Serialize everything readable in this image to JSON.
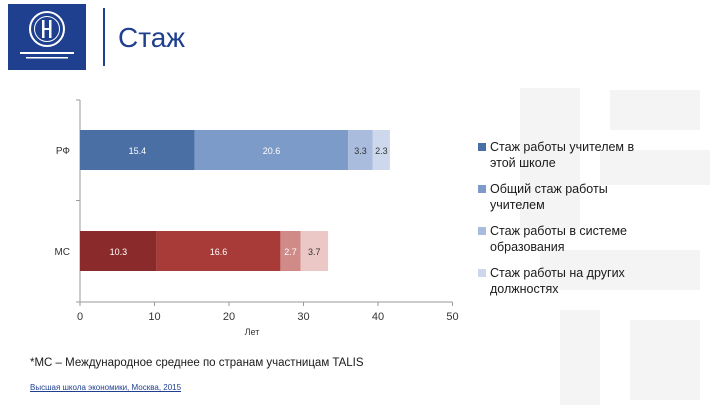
{
  "header": {
    "title": "Стаж",
    "logo_icon": "hse-logo-icon"
  },
  "chart_data": {
    "type": "bar",
    "orientation": "horizontal",
    "stacked": true,
    "categories": [
      "РФ",
      "МС"
    ],
    "series": [
      {
        "name": "Стаж работы учителем в этой школе",
        "values": [
          15.4,
          10.3
        ],
        "labels": [
          "15.4",
          "10.3"
        ]
      },
      {
        "name": "Общий стаж работы учителем",
        "values": [
          20.6,
          16.6
        ],
        "labels": [
          "20.6",
          "16.6"
        ]
      },
      {
        "name": "Стаж работы в системе образования",
        "values": [
          3.3,
          2.7
        ],
        "labels": [
          "3.3",
          "2.7"
        ]
      },
      {
        "name": "Стаж работы на других должностях",
        "values": [
          2.3,
          3.7
        ],
        "labels": [
          "2.3",
          "3.7"
        ]
      }
    ],
    "category_colors": {
      "РФ": [
        "#4a6fa5",
        "#7d9bc9",
        "#a9bcdd",
        "#cdd8ec"
      ],
      "МС": [
        "#8b2a2a",
        "#a83a38",
        "#d08a88",
        "#ebc8c6"
      ]
    },
    "legend_colors": [
      "#4a6fa5",
      "#7d9bc9",
      "#a9bcdd",
      "#cdd8ec"
    ],
    "xlim": [
      0,
      50
    ],
    "xticks": [
      0,
      10,
      20,
      30,
      40,
      50
    ],
    "xlabel": "Лет",
    "legend_position": "right",
    "grid": false
  },
  "footnote": "*МС – Международное среднее по странам участницам TALIS",
  "footer": "Высшая школа экономики, Москва, 2015"
}
